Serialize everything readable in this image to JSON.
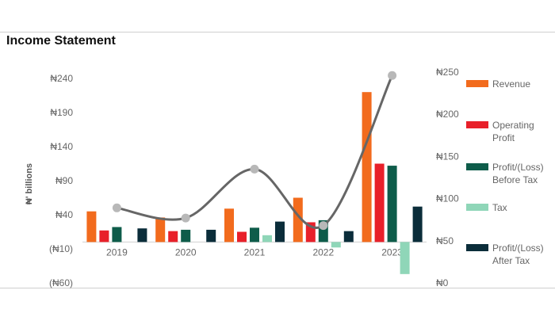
{
  "title": "Income Statement",
  "chart_data": {
    "type": "bar",
    "title": "Income Statement",
    "ylabel": "₦' billions",
    "categories": [
      "2019",
      "2020",
      "2021",
      "2022",
      "2023"
    ],
    "y_left": {
      "range": [
        -60,
        240
      ],
      "ticks": [
        -60,
        -10,
        40,
        90,
        140,
        190,
        240
      ],
      "tick_labels": [
        "(₦60)",
        "(₦10)",
        "₦40",
        "₦90",
        "₦140",
        "₦190",
        "₦240"
      ]
    },
    "y_right": {
      "range": [
        0,
        250
      ],
      "ticks": [
        0,
        50,
        100,
        150,
        200,
        250
      ],
      "tick_labels": [
        "₦0",
        "₦50",
        "₦100",
        "₦150",
        "₦200",
        "₦250"
      ]
    },
    "series": [
      {
        "name": "Revenue",
        "type": "bar",
        "axis": "left",
        "color": "#F26B1D",
        "values": [
          45,
          36,
          49,
          65,
          220
        ]
      },
      {
        "name": "Operating Profit",
        "type": "bar",
        "axis": "left",
        "color": "#E8202A",
        "values": [
          17,
          16,
          15,
          29,
          115
        ]
      },
      {
        "name": "Profit/(Loss) Before Tax",
        "type": "bar",
        "axis": "left",
        "color": "#0E5C4A",
        "values": [
          22,
          18,
          21,
          32,
          112
        ]
      },
      {
        "name": "Tax",
        "type": "bar",
        "axis": "left",
        "color": "#8FD6B8",
        "values": [
          0,
          0,
          10,
          -8,
          -47
        ]
      },
      {
        "name": "Profit/(Loss) After Tax",
        "type": "bar",
        "axis": "left",
        "color": "#0B2D3A",
        "values": [
          20,
          18,
          30,
          16,
          52
        ]
      },
      {
        "name": "",
        "type": "line",
        "axis": "right",
        "color": "#666666",
        "values": [
          89,
          77,
          135,
          68,
          246
        ]
      }
    ]
  }
}
